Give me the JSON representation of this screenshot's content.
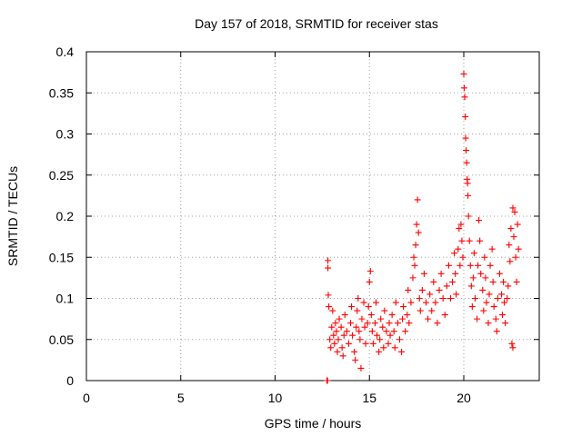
{
  "chart_data": {
    "type": "scatter",
    "title": "Day 157 of 2018, SRMTID for receiver stas",
    "xlabel": "GPS time / hours",
    "ylabel": "SRMTID / TECUs",
    "xlim": [
      0,
      24
    ],
    "ylim": [
      0,
      0.4
    ],
    "x_ticks": [
      0,
      5,
      10,
      15,
      20
    ],
    "x_tick_labels": [
      "0",
      "5",
      "10",
      "15",
      "20"
    ],
    "y_ticks": [
      0,
      0.05,
      0.1,
      0.15,
      0.2,
      0.25,
      0.3,
      0.35,
      0.4
    ],
    "y_tick_labels": [
      "0",
      "0.05",
      "0.1",
      "0.15",
      "0.2",
      "0.25",
      "0.3",
      "0.35",
      "0.4"
    ],
    "grid": true,
    "marker": "+",
    "series": [
      {
        "name": "stas",
        "color": "#ff0000",
        "points": [
          [
            12.75,
            0.0
          ],
          [
            12.78,
            0.0
          ],
          [
            12.8,
            0.146
          ],
          [
            12.8,
            0.137
          ],
          [
            12.82,
            0.104
          ],
          [
            12.85,
            0.09
          ],
          [
            12.9,
            0.05
          ],
          [
            12.95,
            0.04
          ],
          [
            13.0,
            0.065
          ],
          [
            13.05,
            0.085
          ],
          [
            13.1,
            0.055
          ],
          [
            13.15,
            0.045
          ],
          [
            13.2,
            0.07
          ],
          [
            13.25,
            0.06
          ],
          [
            13.3,
            0.035
          ],
          [
            13.35,
            0.05
          ],
          [
            13.4,
            0.075
          ],
          [
            13.5,
            0.065
          ],
          [
            13.55,
            0.04
          ],
          [
            13.6,
            0.03
          ],
          [
            13.65,
            0.055
          ],
          [
            13.7,
            0.08
          ],
          [
            13.8,
            0.06
          ],
          [
            13.9,
            0.045
          ],
          [
            14.0,
            0.07
          ],
          [
            14.05,
            0.09
          ],
          [
            14.1,
            0.055
          ],
          [
            14.2,
            0.035
          ],
          [
            14.25,
            0.025
          ],
          [
            14.3,
            0.065
          ],
          [
            14.35,
            0.085
          ],
          [
            14.4,
            0.1
          ],
          [
            14.45,
            0.06
          ],
          [
            14.5,
            0.05
          ],
          [
            14.55,
            0.015
          ],
          [
            14.6,
            0.075
          ],
          [
            14.7,
            0.095
          ],
          [
            14.75,
            0.065
          ],
          [
            14.8,
            0.045
          ],
          [
            14.9,
            0.07
          ],
          [
            14.95,
            0.09
          ],
          [
            15.0,
            0.12
          ],
          [
            15.05,
            0.133
          ],
          [
            15.1,
            0.08
          ],
          [
            15.15,
            0.06
          ],
          [
            15.2,
            0.045
          ],
          [
            15.3,
            0.07
          ],
          [
            15.35,
            0.095
          ],
          [
            15.4,
            0.055
          ],
          [
            15.5,
            0.035
          ],
          [
            15.55,
            0.05
          ],
          [
            15.6,
            0.075
          ],
          [
            15.7,
            0.065
          ],
          [
            15.75,
            0.04
          ],
          [
            15.8,
            0.085
          ],
          [
            15.9,
            0.06
          ],
          [
            16.0,
            0.045
          ],
          [
            16.05,
            0.07
          ],
          [
            16.1,
            0.055
          ],
          [
            16.2,
            0.08
          ],
          [
            16.3,
            0.06
          ],
          [
            16.35,
            0.04
          ],
          [
            16.4,
            0.095
          ],
          [
            16.5,
            0.07
          ],
          [
            16.6,
            0.05
          ],
          [
            16.7,
            0.035
          ],
          [
            16.75,
            0.075
          ],
          [
            16.8,
            0.09
          ],
          [
            16.9,
            0.06
          ],
          [
            17.0,
            0.08
          ],
          [
            17.05,
            0.11
          ],
          [
            17.1,
            0.07
          ],
          [
            17.2,
            0.095
          ],
          [
            17.3,
            0.125
          ],
          [
            17.35,
            0.15
          ],
          [
            17.4,
            0.14
          ],
          [
            17.45,
            0.165
          ],
          [
            17.5,
            0.19
          ],
          [
            17.55,
            0.22
          ],
          [
            17.6,
            0.18
          ],
          [
            17.65,
            0.1
          ],
          [
            17.7,
            0.085
          ],
          [
            17.8,
            0.11
          ],
          [
            17.9,
            0.13
          ],
          [
            18.0,
            0.095
          ],
          [
            18.1,
            0.075
          ],
          [
            18.2,
            0.105
          ],
          [
            18.3,
            0.085
          ],
          [
            18.4,
            0.12
          ],
          [
            18.5,
            0.095
          ],
          [
            18.6,
            0.07
          ],
          [
            18.7,
            0.11
          ],
          [
            18.8,
            0.13
          ],
          [
            18.9,
            0.1
          ],
          [
            19.0,
            0.08
          ],
          [
            19.1,
            0.115
          ],
          [
            19.2,
            0.14
          ],
          [
            19.3,
            0.1
          ],
          [
            19.4,
            0.12
          ],
          [
            19.5,
            0.155
          ],
          [
            19.55,
            0.13
          ],
          [
            19.6,
            0.105
          ],
          [
            19.7,
            0.16
          ],
          [
            19.75,
            0.185
          ],
          [
            19.8,
            0.14
          ],
          [
            19.85,
            0.19
          ],
          [
            19.9,
            0.17
          ],
          [
            19.95,
            0.15
          ],
          [
            20.0,
            0.373
          ],
          [
            20.02,
            0.356
          ],
          [
            20.05,
            0.345
          ],
          [
            20.08,
            0.321
          ],
          [
            20.1,
            0.295
          ],
          [
            20.12,
            0.28
          ],
          [
            20.15,
            0.265
          ],
          [
            20.18,
            0.245
          ],
          [
            20.2,
            0.24
          ],
          [
            20.22,
            0.225
          ],
          [
            20.25,
            0.2
          ],
          [
            20.3,
            0.17
          ],
          [
            20.35,
            0.14
          ],
          [
            20.4,
            0.115
          ],
          [
            20.45,
            0.09
          ],
          [
            20.5,
            0.125
          ],
          [
            20.55,
            0.155
          ],
          [
            20.6,
            0.1
          ],
          [
            20.7,
            0.075
          ],
          [
            20.75,
            0.14
          ],
          [
            20.8,
            0.195
          ],
          [
            20.85,
            0.17
          ],
          [
            20.9,
            0.13
          ],
          [
            21.0,
            0.11
          ],
          [
            21.05,
            0.085
          ],
          [
            21.1,
            0.15
          ],
          [
            21.15,
            0.125
          ],
          [
            21.2,
            0.095
          ],
          [
            21.3,
            0.07
          ],
          [
            21.35,
            0.105
          ],
          [
            21.4,
            0.14
          ],
          [
            21.5,
            0.16
          ],
          [
            21.55,
            0.12
          ],
          [
            21.6,
            0.09
          ],
          [
            21.7,
            0.075
          ],
          [
            21.75,
            0.06
          ],
          [
            21.8,
            0.1
          ],
          [
            21.9,
            0.13
          ],
          [
            22.0,
            0.105
          ],
          [
            22.05,
            0.08
          ],
          [
            22.1,
            0.12
          ],
          [
            22.15,
            0.095
          ],
          [
            22.2,
            0.07
          ],
          [
            22.3,
            0.1
          ],
          [
            22.35,
            0.115
          ],
          [
            22.4,
            0.165
          ],
          [
            22.45,
            0.145
          ],
          [
            22.5,
            0.185
          ],
          [
            22.55,
            0.045
          ],
          [
            22.6,
            0.04
          ],
          [
            22.6,
            0.21
          ],
          [
            22.65,
            0.175
          ],
          [
            22.7,
            0.205
          ],
          [
            22.75,
            0.15
          ],
          [
            22.8,
            0.12
          ],
          [
            22.85,
            0.19
          ],
          [
            22.9,
            0.16
          ]
        ]
      }
    ]
  }
}
